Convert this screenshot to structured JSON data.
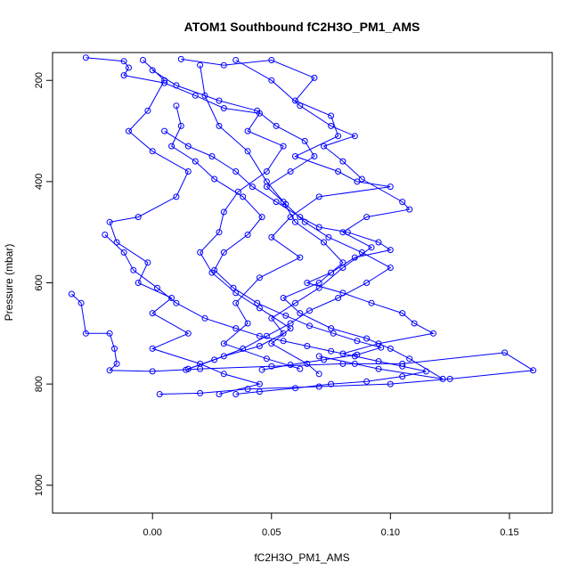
{
  "chart_data": {
    "type": "scatter",
    "title": "ATOM1 Southbound fC2H3O_PM1_AMS",
    "xlabel": "fC2H3O_PM1_AMS",
    "ylabel": "Pressure (mbar)",
    "xlim": [
      -0.042,
      0.168
    ],
    "ylim": [
      1055,
      145
    ],
    "y_reversed": true,
    "x_ticks": [
      0.0,
      0.05,
      0.1,
      0.15
    ],
    "x_tick_labels": [
      "0.00",
      "0.05",
      "0.10",
      "0.15"
    ],
    "y_ticks": [
      200,
      400,
      600,
      800,
      1000
    ],
    "y_tick_labels": [
      "200",
      "400",
      "600",
      "800",
      "1000"
    ],
    "grid": false,
    "legend": "none",
    "colors": {
      "series": "#0000ff",
      "axis": "#000000",
      "background": "#ffffff"
    },
    "marker": "open-circle",
    "connected_by_lines": true,
    "series": [
      {
        "points": [
          [
            -0.028,
            155
          ],
          [
            -0.012,
            162
          ],
          [
            -0.01,
            175
          ],
          [
            -0.012,
            190
          ],
          [
            0.005,
            205
          ],
          [
            0.018,
            230
          ],
          [
            0.03,
            255
          ],
          [
            0.045,
            265
          ],
          [
            0.04,
            300
          ],
          [
            0.055,
            330
          ],
          [
            0.048,
            380
          ],
          [
            0.036,
            420
          ],
          [
            0.03,
            460
          ],
          [
            0.028,
            500
          ],
          [
            0.02,
            540
          ],
          [
            0.025,
            580
          ],
          [
            0.035,
            620
          ],
          [
            0.045,
            650
          ],
          [
            0.058,
            690
          ],
          [
            0.05,
            720
          ],
          [
            0.065,
            760
          ],
          [
            0.07,
            780
          ]
        ]
      },
      {
        "points": [
          [
            0.012,
            158
          ],
          [
            0.03,
            170
          ],
          [
            0.05,
            160
          ],
          [
            0.068,
            195
          ],
          [
            0.06,
            240
          ],
          [
            0.075,
            270
          ],
          [
            0.078,
            310
          ],
          [
            0.06,
            350
          ],
          [
            0.078,
            380
          ],
          [
            0.086,
            400
          ],
          [
            0.1,
            410
          ],
          [
            0.07,
            430
          ],
          [
            0.058,
            470
          ],
          [
            0.05,
            510
          ],
          [
            0.062,
            550
          ],
          [
            0.045,
            590
          ],
          [
            0.035,
            640
          ],
          [
            0.04,
            680
          ],
          [
            0.03,
            720
          ],
          [
            0.048,
            750
          ],
          [
            0.062,
            770
          ]
        ]
      },
      {
        "points": [
          [
            -0.004,
            160
          ],
          [
            0.005,
            200
          ],
          [
            -0.002,
            260
          ],
          [
            -0.01,
            300
          ],
          [
            0.0,
            340
          ],
          [
            0.015,
            380
          ],
          [
            0.01,
            430
          ],
          [
            -0.006,
            470
          ],
          [
            -0.018,
            480
          ],
          [
            -0.015,
            520
          ],
          [
            -0.002,
            560
          ],
          [
            -0.006,
            600
          ],
          [
            0.008,
            630
          ],
          [
            0.0,
            660
          ],
          [
            0.015,
            700
          ],
          [
            0.0,
            730
          ],
          [
            0.02,
            760
          ],
          [
            0.03,
            780
          ],
          [
            0.045,
            800
          ],
          [
            0.028,
            820
          ]
        ]
      },
      {
        "points": [
          [
            0.02,
            170
          ],
          [
            0.022,
            230
          ],
          [
            0.028,
            290
          ],
          [
            0.04,
            340
          ],
          [
            0.048,
            400
          ],
          [
            0.055,
            440
          ],
          [
            0.06,
            480
          ],
          [
            0.072,
            520
          ],
          [
            0.08,
            560
          ],
          [
            0.07,
            600
          ],
          [
            0.055,
            630
          ],
          [
            0.062,
            660
          ],
          [
            0.075,
            690
          ],
          [
            0.09,
            710
          ],
          [
            0.1,
            730
          ],
          [
            0.108,
            750
          ],
          [
            0.122,
            790
          ],
          [
            0.095,
            770
          ],
          [
            0.085,
            760
          ],
          [
            0.07,
            745
          ]
        ]
      },
      {
        "points": [
          [
            -0.034,
            622
          ],
          [
            -0.03,
            640
          ],
          [
            -0.028,
            700
          ],
          [
            -0.018,
            700
          ],
          [
            -0.016,
            730
          ],
          [
            -0.015,
            760
          ],
          [
            -0.018,
            773
          ],
          [
            0.0,
            775
          ],
          [
            0.02,
            770
          ],
          [
            0.05,
            765
          ],
          [
            0.08,
            760
          ],
          [
            0.105,
            760
          ],
          [
            0.148,
            738
          ],
          [
            0.16,
            773
          ],
          [
            0.125,
            790
          ],
          [
            0.1,
            800
          ],
          [
            0.07,
            805
          ],
          [
            0.04,
            810
          ],
          [
            0.02,
            818
          ],
          [
            0.003,
            820
          ]
        ]
      },
      {
        "points": [
          [
            0.035,
            160
          ],
          [
            0.05,
            200
          ],
          [
            0.062,
            250
          ],
          [
            0.075,
            290
          ],
          [
            0.085,
            310
          ],
          [
            0.072,
            330
          ],
          [
            0.08,
            360
          ],
          [
            0.088,
            395
          ],
          [
            0.105,
            440
          ],
          [
            0.108,
            455
          ],
          [
            0.09,
            470
          ],
          [
            0.08,
            500
          ],
          [
            0.092,
            530
          ],
          [
            0.08,
            570
          ],
          [
            0.07,
            610
          ],
          [
            0.06,
            640
          ],
          [
            0.05,
            670
          ],
          [
            0.055,
            700
          ],
          [
            0.045,
            725
          ],
          [
            0.03,
            745
          ],
          [
            0.015,
            770
          ]
        ]
      },
      {
        "points": [
          [
            0.005,
            300
          ],
          [
            0.015,
            330
          ],
          [
            0.025,
            350
          ],
          [
            0.035,
            380
          ],
          [
            0.042,
            410
          ],
          [
            0.052,
            440
          ],
          [
            0.062,
            470
          ],
          [
            0.07,
            490
          ],
          [
            0.082,
            500
          ],
          [
            0.095,
            520
          ],
          [
            0.1,
            535
          ],
          [
            0.085,
            550
          ],
          [
            0.075,
            580
          ],
          [
            0.065,
            600
          ],
          [
            0.08,
            620
          ],
          [
            0.092,
            640
          ],
          [
            0.105,
            660
          ],
          [
            0.11,
            680
          ],
          [
            0.118,
            700
          ],
          [
            0.095,
            720
          ],
          [
            0.08,
            740
          ]
        ]
      },
      {
        "points": [
          [
            -0.02,
            505
          ],
          [
            -0.012,
            540
          ],
          [
            -0.008,
            575
          ],
          [
            0.002,
            610
          ],
          [
            0.01,
            640
          ],
          [
            0.022,
            670
          ],
          [
            0.035,
            690
          ],
          [
            0.045,
            705
          ],
          [
            0.055,
            715
          ],
          [
            0.065,
            725
          ],
          [
            0.075,
            735
          ],
          [
            0.085,
            745
          ],
          [
            0.095,
            755
          ],
          [
            0.105,
            765
          ],
          [
            0.115,
            775
          ],
          [
            0.105,
            785
          ],
          [
            0.09,
            795
          ],
          [
            0.075,
            800
          ],
          [
            0.06,
            808
          ],
          [
            0.045,
            815
          ],
          [
            0.035,
            820
          ]
        ]
      },
      {
        "points": [
          [
            0.01,
            250
          ],
          [
            0.012,
            290
          ],
          [
            0.008,
            330
          ],
          [
            0.018,
            360
          ],
          [
            0.026,
            395
          ],
          [
            0.038,
            430
          ],
          [
            0.046,
            470
          ],
          [
            0.04,
            505
          ],
          [
            0.03,
            540
          ],
          [
            0.026,
            575
          ],
          [
            0.034,
            610
          ],
          [
            0.044,
            640
          ],
          [
            0.056,
            665
          ],
          [
            0.066,
            685
          ],
          [
            0.076,
            700
          ],
          [
            0.086,
            715
          ],
          [
            0.096,
            728
          ],
          [
            0.086,
            742
          ],
          [
            0.072,
            752
          ],
          [
            0.058,
            762
          ],
          [
            0.046,
            772
          ]
        ]
      },
      {
        "points": [
          [
            0.0,
            180
          ],
          [
            0.01,
            210
          ],
          [
            0.028,
            240
          ],
          [
            0.044,
            260
          ],
          [
            0.052,
            290
          ],
          [
            0.064,
            320
          ],
          [
            0.068,
            350
          ],
          [
            0.058,
            380
          ],
          [
            0.048,
            410
          ],
          [
            0.056,
            445
          ],
          [
            0.064,
            480
          ],
          [
            0.074,
            510
          ],
          [
            0.088,
            540
          ],
          [
            0.1,
            570
          ],
          [
            0.09,
            600
          ],
          [
            0.078,
            630
          ],
          [
            0.066,
            655
          ],
          [
            0.058,
            680
          ],
          [
            0.048,
            705
          ],
          [
            0.038,
            730
          ],
          [
            0.026,
            752
          ],
          [
            0.014,
            772
          ]
        ]
      }
    ]
  }
}
